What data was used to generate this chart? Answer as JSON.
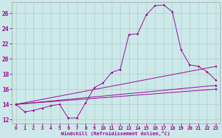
{
  "bg_color": "#cce8e8",
  "grid_color": "#aacccc",
  "line_color": "#990099",
  "xlim": [
    -0.5,
    23.5
  ],
  "ylim": [
    11.5,
    27.5
  ],
  "xticks": [
    0,
    1,
    2,
    3,
    4,
    5,
    6,
    7,
    8,
    9,
    10,
    11,
    12,
    13,
    14,
    15,
    16,
    17,
    18,
    19,
    20,
    21,
    22,
    23
  ],
  "yticks": [
    12,
    14,
    16,
    18,
    20,
    22,
    24,
    26
  ],
  "xlabel": "Windchill (Refroidissement éolien,°C)",
  "series0": [
    14.0,
    13.0,
    13.2,
    13.5,
    13.8,
    14.0,
    12.2,
    12.2,
    14.2,
    16.2,
    16.8,
    18.2,
    18.6,
    23.2,
    23.3,
    25.8,
    27.0,
    27.1,
    26.2,
    21.2,
    19.2,
    19.0,
    18.3,
    17.2
  ],
  "line1": [
    14.0,
    19.0
  ],
  "line2": [
    14.0,
    16.5
  ],
  "line3": [
    14.0,
    16.0
  ]
}
